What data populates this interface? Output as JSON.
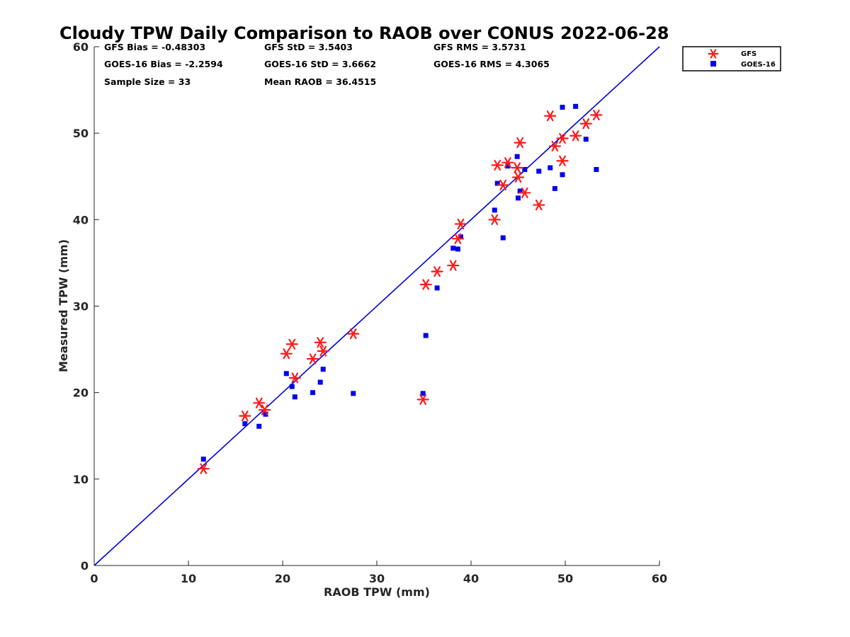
{
  "chart_data": {
    "type": "scatter",
    "title": "Cloudy TPW Daily Comparison to RAOB over CONUS 2022-06-28",
    "xlabel": "RAOB TPW (mm)",
    "ylabel": "Measured TPW (mm)",
    "xlim": [
      0,
      60
    ],
    "ylim": [
      0,
      60
    ],
    "xticks": [
      "0",
      "10",
      "20",
      "30",
      "40",
      "50",
      "60"
    ],
    "yticks": [
      "0",
      "10",
      "20",
      "30",
      "40",
      "50",
      "60"
    ],
    "grid": false,
    "legend_position": "outside top-right",
    "reference_line": {
      "name": "1:1 line",
      "x": [
        0,
        60
      ],
      "y": [
        0,
        60
      ],
      "color": "#0000dd"
    },
    "stats": {
      "gfs_bias": "GFS Bias = -0.48303",
      "gfs_std": "GFS StD = 3.5403",
      "gfs_rms": "GFS RMS = 3.5731",
      "goes_bias": "GOES-16 Bias = -2.2594",
      "goes_std": "GOES-16 StD = 3.6662",
      "goes_rms": "GOES-16 RMS = 4.3065",
      "sample_size": "Sample Size = 33",
      "mean_raob": "Mean RAOB = 36.4515"
    },
    "series": [
      {
        "name": "GFS",
        "marker": "asterisk",
        "color": "#ff1a1a",
        "x": [
          11.6,
          16.0,
          17.5,
          18.1,
          20.4,
          21.0,
          21.3,
          23.2,
          24.0,
          24.3,
          27.5,
          34.9,
          35.2,
          36.4,
          38.1,
          38.6,
          38.9,
          42.5,
          42.8,
          43.4,
          43.9,
          44.9,
          45.0,
          45.2,
          45.7,
          47.2,
          48.4,
          48.9,
          49.7,
          49.7,
          51.1,
          52.2,
          53.3
        ],
        "y": [
          11.2,
          17.3,
          18.8,
          18.0,
          24.5,
          25.6,
          21.7,
          23.9,
          25.8,
          24.8,
          26.8,
          19.2,
          32.5,
          34.0,
          34.7,
          37.8,
          39.5,
          40.0,
          46.3,
          44.0,
          46.6,
          46.0,
          44.9,
          48.9,
          43.1,
          41.7,
          52.0,
          48.5,
          49.4,
          46.8,
          49.7,
          51.1,
          52.1
        ]
      },
      {
        "name": "GOES-16",
        "marker": "square",
        "color": "#0000ee",
        "x": [
          11.6,
          16.0,
          17.5,
          18.2,
          20.4,
          21.0,
          21.3,
          23.2,
          24.0,
          24.3,
          27.5,
          34.9,
          35.2,
          36.4,
          38.1,
          38.6,
          38.9,
          42.5,
          42.8,
          43.4,
          43.9,
          44.9,
          45.0,
          45.2,
          45.7,
          47.2,
          48.4,
          48.9,
          49.7,
          49.7,
          51.1,
          52.2,
          53.3
        ],
        "y": [
          12.3,
          16.4,
          16.1,
          17.5,
          22.2,
          20.7,
          19.5,
          20.0,
          21.2,
          22.7,
          19.9,
          19.9,
          26.6,
          32.1,
          36.7,
          36.6,
          38.0,
          41.1,
          44.2,
          37.9,
          46.2,
          47.3,
          42.5,
          43.3,
          45.8,
          45.6,
          46.0,
          43.6,
          53.0,
          45.2,
          53.1,
          49.3,
          45.8
        ]
      }
    ]
  }
}
